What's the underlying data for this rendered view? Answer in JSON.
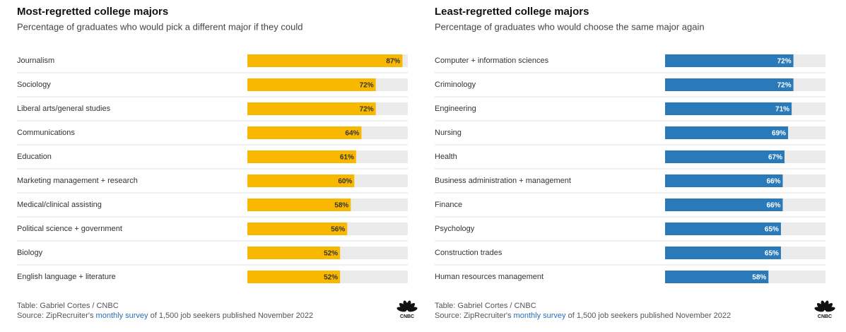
{
  "chart_data": [
    {
      "type": "bar",
      "title": "Most-regretted college majors",
      "subtitle": "Percentage of graduates who would pick a different major if they could",
      "categories": [
        "Journalism",
        "Sociology",
        "Liberal arts/general studies",
        "Communications",
        "Education",
        "Marketing management + research",
        "Medical/clinical assisting",
        "Political science + government",
        "Biology",
        "English language + literature"
      ],
      "values": [
        87,
        72,
        72,
        64,
        61,
        60,
        58,
        56,
        52,
        52
      ],
      "value_labels": [
        "87%",
        "72%",
        "72%",
        "64%",
        "61%",
        "60%",
        "58%",
        "56%",
        "52%",
        "52%"
      ],
      "color": "#f9b800",
      "label_color": "#333333",
      "xlim": [
        0,
        90
      ],
      "credit": "Table: Gabriel Cortes / CNBC",
      "source": [
        "Source: ZipRecruiter's",
        "monthly survey",
        "of 1,500 job seekers published November 2022"
      ],
      "logo": "CNBC"
    },
    {
      "type": "bar",
      "title": "Least-regretted college majors",
      "subtitle": "Percentage of graduates who would choose the same major again",
      "categories": [
        "Computer + information sciences",
        "Criminology",
        "Engineering",
        "Nursing",
        "Health",
        "Business administration + management",
        "Finance",
        "Psychology",
        "Construction trades",
        "Human resources management"
      ],
      "values": [
        72,
        72,
        71,
        69,
        67,
        66,
        66,
        65,
        65,
        58
      ],
      "value_labels": [
        "72%",
        "72%",
        "71%",
        "69%",
        "67%",
        "66%",
        "66%",
        "65%",
        "65%",
        "58%"
      ],
      "color": "#2a7ab9",
      "label_color": "#ffffff",
      "xlim": [
        0,
        90
      ],
      "credit": "Table: Gabriel Cortes / CNBC",
      "source": [
        "Source: ZipRecruiter's",
        "monthly survey",
        "of 1,500 job seekers published November 2022"
      ],
      "logo": "CNBC"
    }
  ]
}
